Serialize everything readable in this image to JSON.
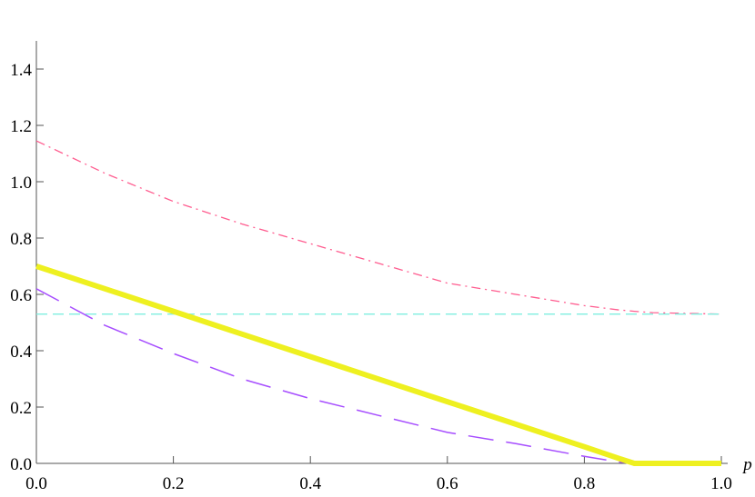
{
  "chart_data": {
    "type": "line",
    "x_label": "p",
    "x": [
      0,
      0.1,
      0.2,
      0.3,
      0.4,
      0.5,
      0.6,
      0.7,
      0.8,
      0.85,
      0.873,
      0.9,
      1
    ],
    "series": [
      {
        "color": "#ff5c8f",
        "style": "dashdot",
        "values": [
          1.145,
          1.03,
          0.93,
          0.85,
          0.78,
          0.71,
          0.64,
          0.6,
          0.56,
          0.545,
          0.54,
          0.535,
          0.53
        ]
      },
      {
        "color": "#7fefe0",
        "style": "dashed",
        "values": [
          0.53,
          0.53,
          0.53,
          0.53,
          0.53,
          0.53,
          0.53,
          0.53,
          0.53,
          0.53,
          0.53,
          0.53,
          0.53
        ]
      },
      {
        "color": "#a64dff",
        "style": "longdash",
        "values": [
          0.62,
          0.49,
          0.39,
          0.3,
          0.23,
          0.17,
          0.11,
          0.07,
          0.025,
          0.005,
          0,
          0,
          0
        ]
      },
      {
        "color": "#eef020",
        "style": "thick",
        "values": [
          0.7,
          0.62,
          0.54,
          0.459,
          0.379,
          0.299,
          0.219,
          0.139,
          0.059,
          0.018,
          0,
          0,
          0
        ]
      }
    ],
    "xlim": [
      0,
      1
    ],
    "ylim": [
      0,
      1.5
    ],
    "xticks": [
      {
        "value": 0,
        "label": "0.0"
      },
      0.2,
      0.4,
      0.6,
      0.8,
      {
        "value": 1,
        "label": "1.0"
      }
    ],
    "yticks": [
      {
        "value": 0,
        "label": "0.0"
      },
      0.2,
      0.4,
      0.6,
      0.8,
      {
        "value": 1,
        "label": "1.0"
      },
      1.2,
      1.4
    ]
  }
}
